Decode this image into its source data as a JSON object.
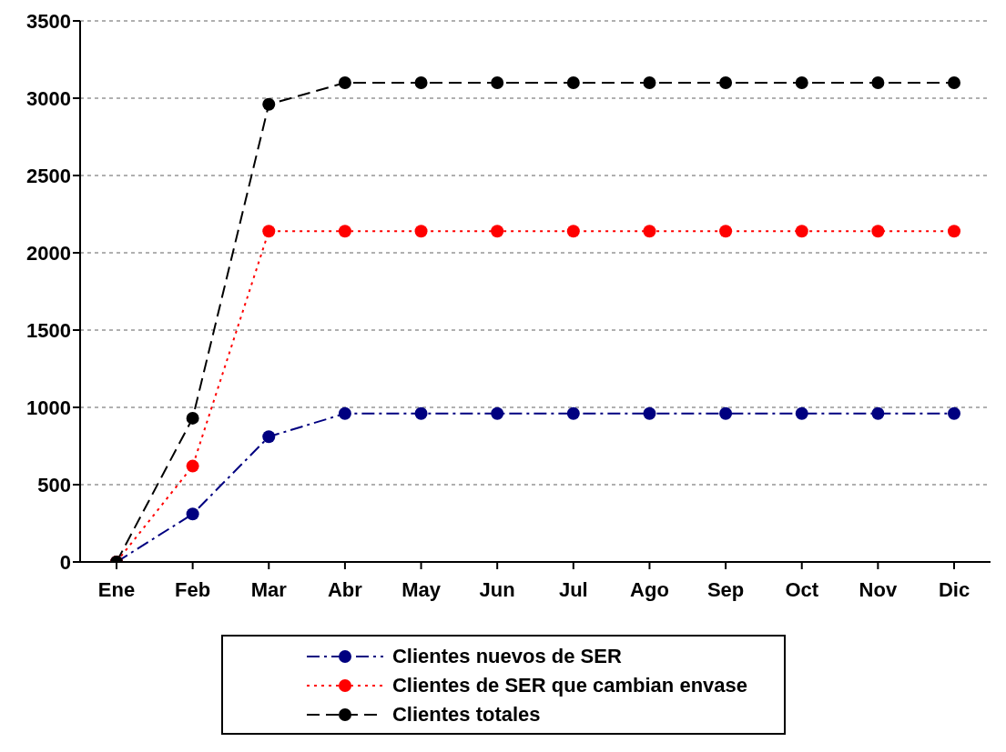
{
  "chart_data": {
    "type": "line",
    "categories": [
      "Ene",
      "Feb",
      "Mar",
      "Abr",
      "May",
      "Jun",
      "Jul",
      "Ago",
      "Sep",
      "Oct",
      "Nov",
      "Dic"
    ],
    "series": [
      {
        "name": "Clientes nuevos de SER",
        "color": "#000080",
        "line_style": "dashdot",
        "values": [
          0,
          310,
          810,
          960,
          960,
          960,
          960,
          960,
          960,
          960,
          960,
          960
        ]
      },
      {
        "name": "Clientes de SER que cambian envase",
        "color": "#ff0000",
        "line_style": "dotted",
        "values": [
          0,
          620,
          2140,
          2140,
          2140,
          2140,
          2140,
          2140,
          2140,
          2140,
          2140,
          2140
        ]
      },
      {
        "name": "Clientes totales",
        "color": "#000000",
        "line_style": "dashed",
        "values": [
          0,
          930,
          2960,
          3100,
          3100,
          3100,
          3100,
          3100,
          3100,
          3100,
          3100,
          3100
        ]
      }
    ],
    "ylim": [
      0,
      3500
    ],
    "yticks": [
      0,
      500,
      1000,
      1500,
      2000,
      2500,
      3000,
      3500
    ],
    "grid": "y",
    "legend": "bottom",
    "marker": "circle"
  }
}
